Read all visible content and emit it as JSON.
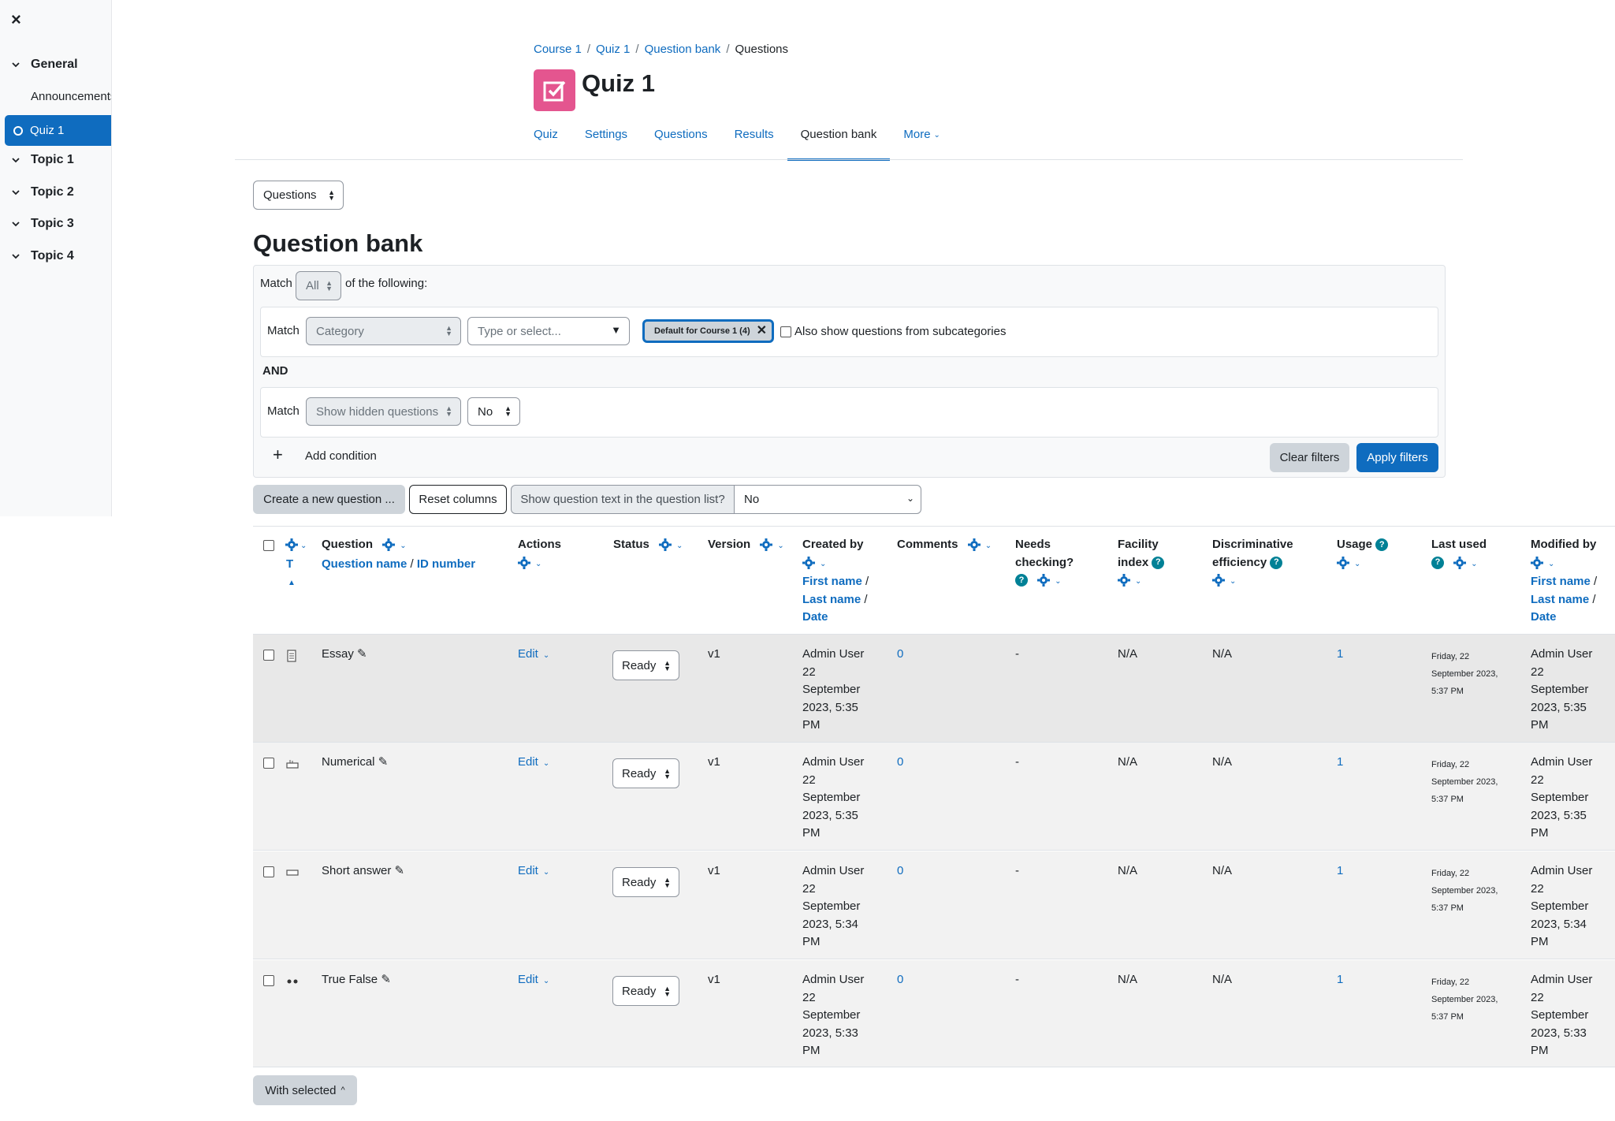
{
  "sidebar": {
    "close_label": "×",
    "sections": [
      {
        "label": "General",
        "items": [
          "Announcements"
        ]
      },
      {
        "label": "Topic 1"
      },
      {
        "label": "Topic 2"
      },
      {
        "label": "Topic 3"
      },
      {
        "label": "Topic 4"
      }
    ],
    "active_item": "Quiz 1"
  },
  "breadcrumb": [
    "Course 1",
    "Quiz 1",
    "Question bank",
    "Questions"
  ],
  "page_title": "Quiz 1",
  "tabs": [
    {
      "label": "Quiz"
    },
    {
      "label": "Settings"
    },
    {
      "label": "Questions"
    },
    {
      "label": "Results"
    },
    {
      "label": "Question bank",
      "active": true
    },
    {
      "label": "More"
    }
  ],
  "bank_select": "Questions",
  "heading": "Question bank",
  "filter": {
    "match_label": "Match",
    "match_value": "All",
    "of_following": "of the following:",
    "cond1": {
      "match": "Match",
      "field": "Category",
      "placeholder": "Type or select...",
      "pill": "Default for Course 1 (4)",
      "checkbox_label": "Also show questions from subcategories"
    },
    "and_label": "AND",
    "cond2": {
      "match": "Match",
      "field": "Show hidden questions",
      "value": "No"
    },
    "add_condition": "Add condition",
    "clear": "Clear filters",
    "apply": "Apply filters"
  },
  "toolbar": {
    "create": "Create a new question ...",
    "reset": "Reset columns",
    "show_text_label": "Show question text in the question list?",
    "show_text_value": "No"
  },
  "columns": {
    "t": "T",
    "question": "Question",
    "question_name": "Question name",
    "id_number": "ID number",
    "actions": "Actions",
    "status": "Status",
    "version": "Version",
    "created_by": "Created by",
    "first_name": "First name",
    "last_name": "Last name",
    "date": "Date",
    "comments": "Comments",
    "needs_checking_1": "Needs",
    "needs_checking_2": "checking?",
    "facility_1": "Facility",
    "facility_2": "index",
    "discrim_1": "Discriminative",
    "discrim_2": "efficiency",
    "usage": "Usage",
    "last_used": "Last used",
    "modified_by": "Modified by"
  },
  "rows": [
    {
      "name": "Essay",
      "edit": "Edit",
      "status": "Ready",
      "version": "v1",
      "created": [
        "Admin User",
        "22",
        "September",
        "2023, 5:35",
        "PM"
      ],
      "comments": "0",
      "needs": "-",
      "facility": "N/A",
      "discrim": "N/A",
      "usage": "1",
      "last_used": [
        "Friday, 22",
        "September 2023,",
        "5:37 PM"
      ],
      "modified": [
        "Admin User",
        "22",
        "September",
        "2023, 5:35",
        "PM"
      ]
    },
    {
      "name": "Numerical",
      "edit": "Edit",
      "status": "Ready",
      "version": "v1",
      "created": [
        "Admin User",
        "22",
        "September",
        "2023, 5:35",
        "PM"
      ],
      "comments": "0",
      "needs": "-",
      "facility": "N/A",
      "discrim": "N/A",
      "usage": "1",
      "last_used": [
        "Friday, 22",
        "September 2023,",
        "5:37 PM"
      ],
      "modified": [
        "Admin User",
        "22",
        "September",
        "2023, 5:35",
        "PM"
      ]
    },
    {
      "name": "Short answer",
      "edit": "Edit",
      "status": "Ready",
      "version": "v1",
      "created": [
        "Admin User",
        "22",
        "September",
        "2023, 5:34",
        "PM"
      ],
      "comments": "0",
      "needs": "-",
      "facility": "N/A",
      "discrim": "N/A",
      "usage": "1",
      "last_used": [
        "Friday, 22",
        "September 2023,",
        "5:37 PM"
      ],
      "modified": [
        "Admin User",
        "22",
        "September",
        "2023, 5:34",
        "PM"
      ]
    },
    {
      "name": "True False",
      "edit": "Edit",
      "status": "Ready",
      "version": "v1",
      "created": [
        "Admin User",
        "22",
        "September",
        "2023, 5:33",
        "PM"
      ],
      "comments": "0",
      "needs": "-",
      "facility": "N/A",
      "discrim": "N/A",
      "usage": "1",
      "last_used": [
        "Friday, 22",
        "September 2023,",
        "5:37 PM"
      ],
      "modified": [
        "Admin User",
        "22",
        "September",
        "2023, 5:33",
        "PM"
      ]
    }
  ],
  "with_selected": "With selected"
}
